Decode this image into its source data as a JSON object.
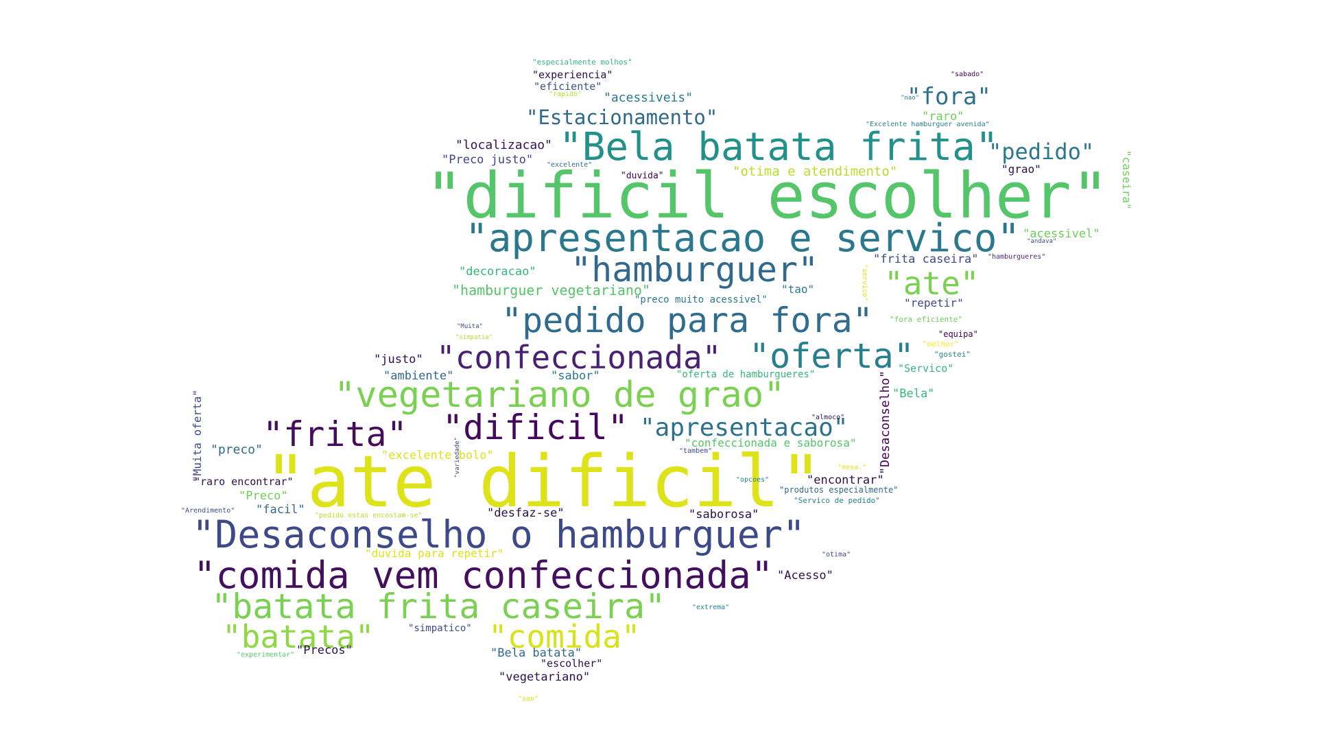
{
  "palette": {
    "c0": "#440154",
    "c1": "#482878",
    "c2": "#3e4989",
    "c3": "#31688e",
    "c4": "#26828e",
    "c5": "#1f9e89",
    "c6": "#35b779",
    "c7": "#6ece58",
    "c8": "#b5de2b",
    "c9": "#dde318"
  },
  "words": [
    {
      "id": "w0",
      "text": "\"dificil escolher\"",
      "color": "#54c568"
    },
    {
      "id": "w1",
      "text": "\"ate dificil\"",
      "color": "#dde318"
    },
    {
      "id": "w2",
      "text": "\"apresentacao e servico\"",
      "color": "#2a788e"
    },
    {
      "id": "w3",
      "text": "\"Bela batata frita\"",
      "color": "#22908b"
    },
    {
      "id": "w4",
      "text": "\"Desaconselho o hamburguer\"",
      "color": "#3e4989"
    },
    {
      "id": "w5",
      "text": "\"comida vem confeccionada\"",
      "color": "#440f5e"
    },
    {
      "id": "w6",
      "text": "\"hamburguer\"",
      "color": "#31688e"
    },
    {
      "id": "w7",
      "text": "\"pedido para fora\"",
      "color": "#2f6c8e"
    },
    {
      "id": "w8",
      "text": "\"confeccionada\"",
      "color": "#482173"
    },
    {
      "id": "w9",
      "text": "\"oferta\"",
      "color": "#277f8e"
    },
    {
      "id": "w10",
      "text": "\"vegetariano de grao\"",
      "color": "#7ad151"
    },
    {
      "id": "w11",
      "text": "\"frita\"",
      "color": "#450c5a"
    },
    {
      "id": "w12",
      "text": "\"dificil\"",
      "color": "#46085c"
    },
    {
      "id": "w13",
      "text": "\"apresentacao\"",
      "color": "#2c728e"
    },
    {
      "id": "w14",
      "text": "\"batata frita caseira\"",
      "color": "#7ad151"
    },
    {
      "id": "w15",
      "text": "\"batata\"",
      "color": "#8fd744"
    },
    {
      "id": "w16",
      "text": "\"comida\"",
      "color": "#d8e219"
    },
    {
      "id": "w17",
      "text": "\"ate\"",
      "color": "#7ad151"
    },
    {
      "id": "w18",
      "text": "\"fora\"",
      "color": "#2c728e"
    },
    {
      "id": "w19",
      "text": "\"pedido\"",
      "color": "#2a788e"
    },
    {
      "id": "w20",
      "text": "\"Estacionamento\"",
      "color": "#31688e"
    },
    {
      "id": "w21",
      "text": "\"localizacao\"",
      "color": "#3a0f58"
    },
    {
      "id": "w22",
      "text": "\"Preco justo\"",
      "color": "#414487"
    },
    {
      "id": "w23",
      "text": "\"otima e atendimento\"",
      "color": "#b8de29"
    },
    {
      "id": "w24",
      "text": "\"acessiveis\"",
      "color": "#2a788e"
    },
    {
      "id": "w25",
      "text": "\"experiencia\"",
      "color": "#2b0f4e"
    },
    {
      "id": "w26",
      "text": "\"eficiente\"",
      "color": "#3b528b"
    },
    {
      "id": "w27",
      "text": "\"especialmente molhos\"",
      "color": "#35b779"
    },
    {
      "id": "w28",
      "text": "\"rapido\"",
      "color": "#b5de2b"
    },
    {
      "id": "w29",
      "text": "\"sabado\"",
      "color": "#440154"
    },
    {
      "id": "w30",
      "text": "\"nao\"",
      "color": "#26828e"
    },
    {
      "id": "w31",
      "text": "\"raro\"",
      "color": "#6ece58"
    },
    {
      "id": "w32",
      "text": "\"Excelente hamburguer avenida\"",
      "color": "#26828e"
    },
    {
      "id": "w33",
      "text": "\"excelente\"",
      "color": "#31688e"
    },
    {
      "id": "w34",
      "text": "\"duvida\"",
      "color": "#440154"
    },
    {
      "id": "w35",
      "text": "\"grao\"",
      "color": "#2b0f4e"
    },
    {
      "id": "w36",
      "text": "\"caseira\"",
      "color": "#6ece58"
    },
    {
      "id": "w37",
      "text": "\"acessivel\"",
      "color": "#6ece58"
    },
    {
      "id": "w38",
      "text": "\"andava\"",
      "color": "#3b528b"
    },
    {
      "id": "w39",
      "text": "\"hamburgueres\"",
      "color": "#482878"
    },
    {
      "id": "w40",
      "text": "\"frita caseira\"",
      "color": "#3e4989"
    },
    {
      "id": "w41",
      "text": "\"decoracao\"",
      "color": "#35b779"
    },
    {
      "id": "w42",
      "text": "\"hamburguer vegetariano\"",
      "color": "#54c568"
    },
    {
      "id": "w43",
      "text": "\"tao\"",
      "color": "#2a788e"
    },
    {
      "id": "w44",
      "text": "\"preco muito acessivel\"",
      "color": "#2a788e"
    },
    {
      "id": "w45",
      "text": "\"servico\"",
      "color": "#dde318"
    },
    {
      "id": "w46",
      "text": "\"repetir\"",
      "color": "#3e4989"
    },
    {
      "id": "w47",
      "text": "\"fora eficiente\"",
      "color": "#6ece58"
    },
    {
      "id": "w48",
      "text": "\"Muita\"",
      "color": "#3e4989"
    },
    {
      "id": "w49",
      "text": "\"simpatia\"",
      "color": "#b5de2b"
    },
    {
      "id": "w50",
      "text": "\"equipa\"",
      "color": "#440154"
    },
    {
      "id": "w51",
      "text": "\"melhor\"",
      "color": "#fde725"
    },
    {
      "id": "w52",
      "text": "\"gostei\"",
      "color": "#26828e"
    },
    {
      "id": "w53",
      "text": "\"Servico\"",
      "color": "#35b779"
    },
    {
      "id": "w54",
      "text": "\"justo\"",
      "color": "#2b0f4e"
    },
    {
      "id": "w55",
      "text": "\"ambiente\"",
      "color": "#31688e"
    },
    {
      "id": "w56",
      "text": "\"sabor\"",
      "color": "#2a788e"
    },
    {
      "id": "w57",
      "text": "\"oferta de hamburgueres\"",
      "color": "#35b779"
    },
    {
      "id": "w58",
      "text": "\"Desaconselho\"",
      "color": "#440154"
    },
    {
      "id": "w59",
      "text": "\"Bela\"",
      "color": "#35b779"
    },
    {
      "id": "w60",
      "text": "\"Muita oferta\"",
      "color": "#3e4989"
    },
    {
      "id": "w61",
      "text": "\"preco\"",
      "color": "#31688e"
    },
    {
      "id": "w62",
      "text": "\"excelente bolo\"",
      "color": "#dde318"
    },
    {
      "id": "w63",
      "text": "\"variedade\"",
      "color": "#3e4989"
    },
    {
      "id": "w64",
      "text": "\"almoco\"",
      "color": "#2b0f4e"
    },
    {
      "id": "w65",
      "text": "\"confeccionada e saborosa\"",
      "color": "#54c568"
    },
    {
      "id": "w66",
      "text": "\"tambem\"",
      "color": "#3e4989"
    },
    {
      "id": "w67",
      "text": "\"raro encontrar\"",
      "color": "#2b0f4e"
    },
    {
      "id": "w68",
      "text": "\"mesa.\"",
      "color": "#dde318"
    },
    {
      "id": "w69",
      "text": "\"encontrar\"",
      "color": "#2b0f4e"
    },
    {
      "id": "w70",
      "text": "\"opcoes\"",
      "color": "#26828e"
    },
    {
      "id": "w71",
      "text": "\"produtos especialmente\"",
      "color": "#31688e"
    },
    {
      "id": "w72",
      "text": "\"Preco\"",
      "color": "#6ece58"
    },
    {
      "id": "w73",
      "text": "\"facil\"",
      "color": "#31688e"
    },
    {
      "id": "w74",
      "text": "\"Arendimento\"",
      "color": "#3e4989"
    },
    {
      "id": "w75",
      "text": "\"pedido estas encostam-se\"",
      "color": "#b5de2b"
    },
    {
      "id": "w76",
      "text": "\"desfaz-se\"",
      "color": "#2b0f4e"
    },
    {
      "id": "w77",
      "text": "\"saborosa\"",
      "color": "#2b0f4e"
    },
    {
      "id": "w78",
      "text": "\"Servico de pedido\"",
      "color": "#26828e"
    },
    {
      "id": "w79",
      "text": "\"duvida para repetir\"",
      "color": "#dde318"
    },
    {
      "id": "w80",
      "text": "\"otima\"",
      "color": "#3e4989"
    },
    {
      "id": "w81",
      "text": "\"Acesso\"",
      "color": "#2b0f4e"
    },
    {
      "id": "w82",
      "text": "\"extrema\"",
      "color": "#26828e"
    },
    {
      "id": "w83",
      "text": "\"simpatico\"",
      "color": "#3e4989"
    },
    {
      "id": "w84",
      "text": "\"experimentar\"",
      "color": "#54c568"
    },
    {
      "id": "w85",
      "text": "\"Precos\"",
      "color": "#2b0f4e"
    },
    {
      "id": "w86",
      "text": "\"Bela batata\"",
      "color": "#31688e"
    },
    {
      "id": "w87",
      "text": "\"escolher\"",
      "color": "#2b0f4e"
    },
    {
      "id": "w88",
      "text": "\"vegetariano\"",
      "color": "#2b0f4e"
    },
    {
      "id": "w89",
      "text": "\"sao\"",
      "color": "#dde318"
    }
  ]
}
